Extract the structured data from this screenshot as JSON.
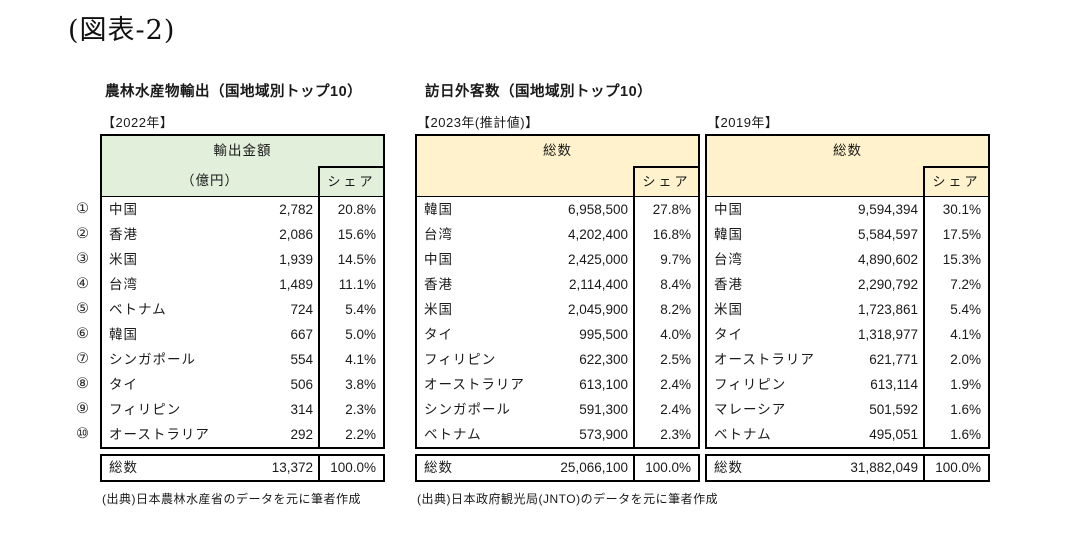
{
  "page": {
    "title": "(図表-2)"
  },
  "sections": [
    {
      "title": "農林水産物輸出（国地域別トップ10）"
    },
    {
      "title": "訪日外客数（国地域別トップ10）"
    }
  ],
  "colors": {
    "export_header_bg": "#e2efda",
    "visitor_header_bg": "#fff2cc",
    "border": "#000000"
  },
  "ranks": [
    "①",
    "②",
    "③",
    "④",
    "⑤",
    "⑥",
    "⑦",
    "⑧",
    "⑨",
    "⑩"
  ],
  "tables": [
    {
      "year_label": "【2022年】",
      "theme": "export",
      "header_main": "輸出金額",
      "header_sub": "（億円）",
      "header_share": "シェア",
      "rows": [
        {
          "name": "中国",
          "value": "2,782",
          "share": "20.8%"
        },
        {
          "name": "香港",
          "value": "2,086",
          "share": "15.6%"
        },
        {
          "name": "米国",
          "value": "1,939",
          "share": "14.5%"
        },
        {
          "name": "台湾",
          "value": "1,489",
          "share": "11.1%"
        },
        {
          "name": "ベトナム",
          "value": "724",
          "share": "5.4%"
        },
        {
          "name": "韓国",
          "value": "667",
          "share": "5.0%"
        },
        {
          "name": "シンガポール",
          "value": "554",
          "share": "4.1%"
        },
        {
          "name": "タイ",
          "value": "506",
          "share": "3.8%"
        },
        {
          "name": "フィリピン",
          "value": "314",
          "share": "2.3%"
        },
        {
          "name": "オーストラリア",
          "value": "292",
          "share": "2.2%"
        }
      ],
      "total": {
        "label": "総数",
        "value": "13,372",
        "share": "100.0%"
      },
      "source": "(出典)日本農林水産省のデータを元に筆者作成"
    },
    {
      "year_label": "【2023年(推計値)】",
      "theme": "visitor",
      "header_main": "総数",
      "header_sub": "",
      "header_share": "シェア",
      "rows": [
        {
          "name": "韓国",
          "value": "6,958,500",
          "share": "27.8%"
        },
        {
          "name": "台湾",
          "value": "4,202,400",
          "share": "16.8%"
        },
        {
          "name": "中国",
          "value": "2,425,000",
          "share": "9.7%"
        },
        {
          "name": "香港",
          "value": "2,114,400",
          "share": "8.4%"
        },
        {
          "name": "米国",
          "value": "2,045,900",
          "share": "8.2%"
        },
        {
          "name": "タイ",
          "value": "995,500",
          "share": "4.0%"
        },
        {
          "name": "フィリピン",
          "value": "622,300",
          "share": "2.5%"
        },
        {
          "name": "オーストラリア",
          "value": "613,100",
          "share": "2.4%"
        },
        {
          "name": "シンガポール",
          "value": "591,300",
          "share": "2.4%"
        },
        {
          "name": "ベトナム",
          "value": "573,900",
          "share": "2.3%"
        }
      ],
      "total": {
        "label": "総数",
        "value": "25,066,100",
        "share": "100.0%"
      },
      "source": "(出典)日本政府観光局(JNTO)のデータを元に筆者作成"
    },
    {
      "year_label": "【2019年】",
      "theme": "visitor",
      "header_main": "総数",
      "header_sub": "",
      "header_share": "シェア",
      "rows": [
        {
          "name": "中国",
          "value": "9,594,394",
          "share": "30.1%"
        },
        {
          "name": "韓国",
          "value": "5,584,597",
          "share": "17.5%"
        },
        {
          "name": "台湾",
          "value": "4,890,602",
          "share": "15.3%"
        },
        {
          "name": "香港",
          "value": "2,290,792",
          "share": "7.2%"
        },
        {
          "name": "米国",
          "value": "1,723,861",
          "share": "5.4%"
        },
        {
          "name": "タイ",
          "value": "1,318,977",
          "share": "4.1%"
        },
        {
          "name": "オーストラリア",
          "value": "621,771",
          "share": "2.0%"
        },
        {
          "name": "フィリピン",
          "value": "613,114",
          "share": "1.9%"
        },
        {
          "name": "マレーシア",
          "value": "501,592",
          "share": "1.6%"
        },
        {
          "name": "ベトナム",
          "value": "495,051",
          "share": "1.6%"
        }
      ],
      "total": {
        "label": "総数",
        "value": "31,882,049",
        "share": "100.0%"
      },
      "source": ""
    }
  ]
}
